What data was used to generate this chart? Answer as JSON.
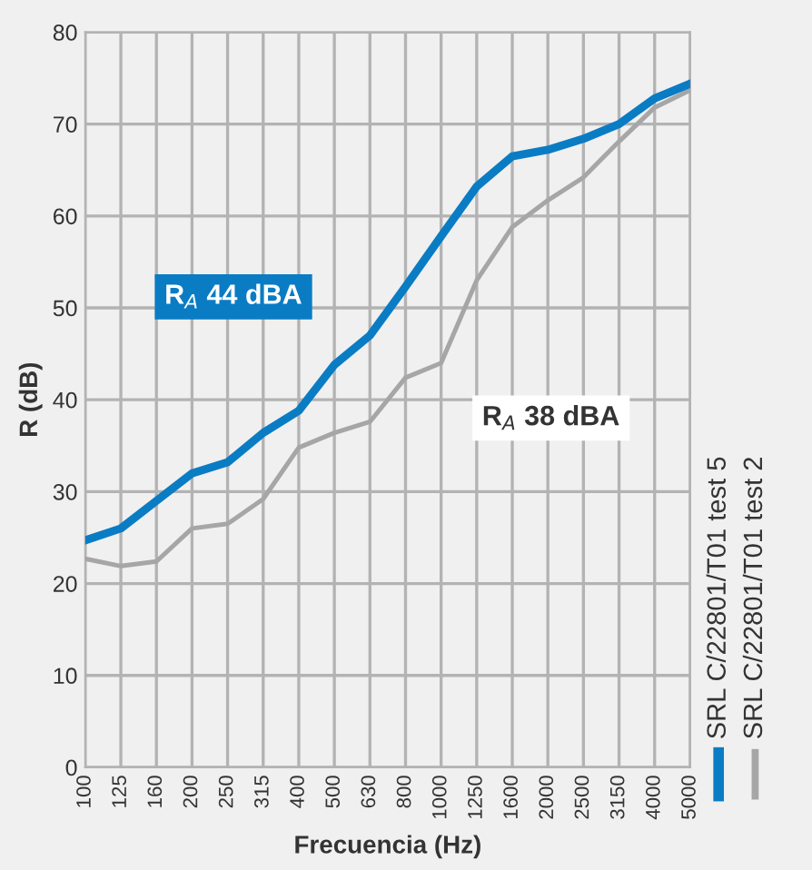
{
  "chart_data": {
    "type": "line",
    "xlabel": "Frecuencia (Hz)",
    "ylabel": "R (dB)",
    "categories": [
      "100",
      "125",
      "160",
      "200",
      "250",
      "315",
      "400",
      "500",
      "630",
      "800",
      "1000",
      "1250",
      "1600",
      "2000",
      "2500",
      "3150",
      "4000",
      "5000"
    ],
    "series": [
      {
        "name": "SRL C/22801/T01 test 5",
        "color": "#0a7cc4",
        "values": [
          24.7,
          26,
          29,
          32,
          33.2,
          36.4,
          38.8,
          43.8,
          47,
          52.3,
          57.8,
          63.2,
          66.5,
          67.2,
          68.4,
          70,
          72.8,
          74.4
        ]
      },
      {
        "name": "SRL C/22801/T01 test 2",
        "color": "#a6a6a6",
        "values": [
          22.7,
          21.9,
          22.4,
          26,
          26.5,
          29.2,
          34.8,
          36.4,
          37.6,
          42.4,
          44,
          53,
          58.8,
          61.7,
          64.2,
          68.1,
          71.8,
          73.7
        ]
      }
    ],
    "annotations": [
      "R$_{A}$ 44 dBA",
      "R$_{A}$ 38 dBA"
    ],
    "ylim": [
      0,
      80
    ],
    "yticks": [
      0,
      10,
      20,
      30,
      40,
      50,
      60,
      70,
      80
    ],
    "grid": true,
    "legend": "right"
  }
}
